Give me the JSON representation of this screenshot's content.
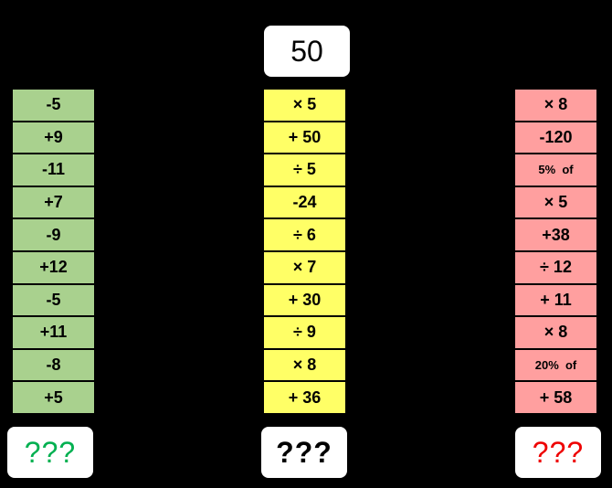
{
  "start": "50",
  "columns": [
    {
      "operations": [
        "-5",
        "+9",
        "-11",
        "+7",
        "-9",
        "+12",
        "-5",
        "+11",
        "-8",
        "+5"
      ],
      "answer": "???"
    },
    {
      "operations": [
        "× 5",
        "+ 50",
        "÷ 5",
        "-24",
        "÷ 6",
        "× 7",
        "+ 30",
        "÷ 9",
        "× 8",
        "+ 36"
      ],
      "answer": "???"
    },
    {
      "operations": [
        "× 8",
        "-120",
        "5%  of",
        "× 5",
        "+38",
        "÷ 12",
        "+ 11",
        "× 8",
        "20%  of",
        "+ 58"
      ],
      "answer": "???"
    }
  ]
}
